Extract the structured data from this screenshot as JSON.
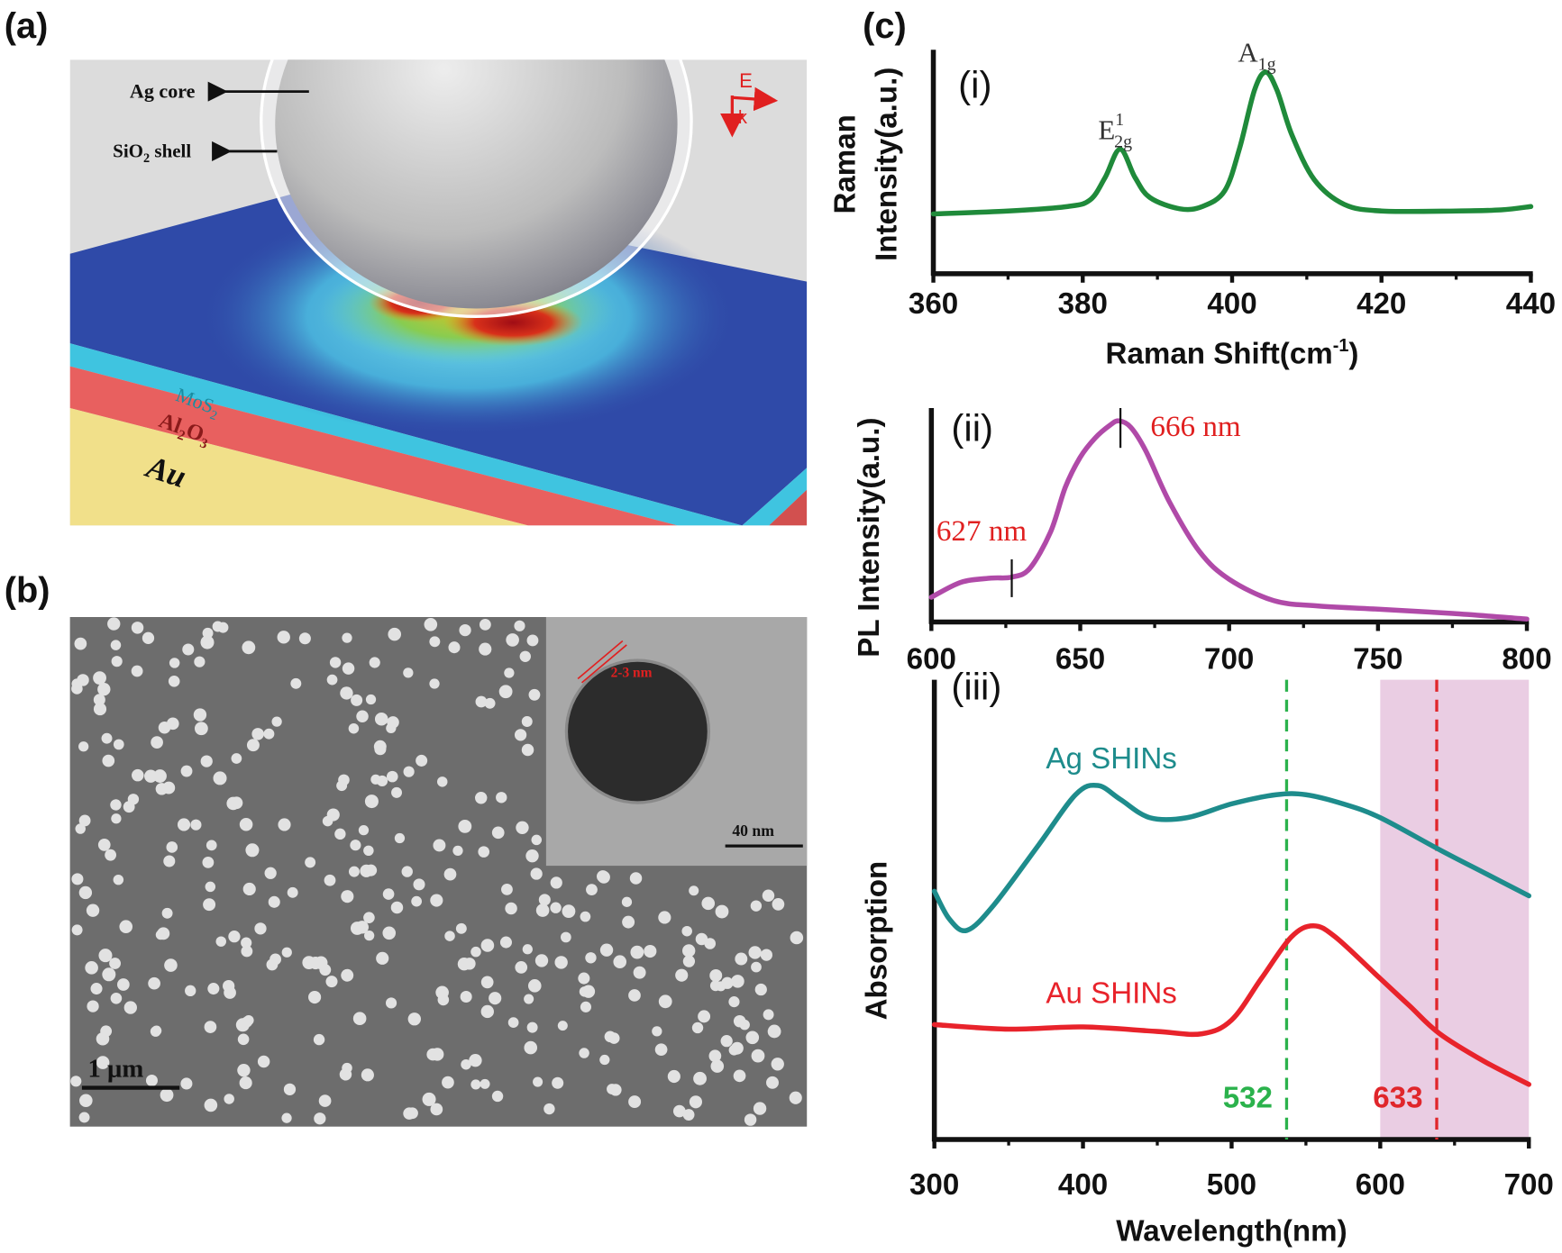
{
  "panels": {
    "a": {
      "label": "(a)",
      "ag_core": "Ag core",
      "sio2_shell": {
        "main": "SiO",
        "sub": "2",
        "rest": " shell"
      },
      "e_field": "E",
      "k_vector": "k",
      "mos2": {
        "main": "MoS",
        "sub": "2"
      },
      "al2o3": {
        "a": "Al",
        "s1": "2",
        "b": "O",
        "s2": "3"
      },
      "au": "Au",
      "colors": {
        "mos2": "#3fc4e0",
        "al2o3": "#e8605f",
        "au": "#f1e08a",
        "field_low": "#2f4aa8",
        "field_high": "#b0101a"
      }
    },
    "b": {
      "label": "(b)",
      "scale_bar": "1 μm",
      "inset_scale_bar": "40 nm",
      "shell_thickness": "2-3 nm"
    },
    "c": {
      "label": "(c)"
    }
  },
  "chart_data": [
    {
      "type": "line",
      "panel": "(i)",
      "xlabel": {
        "main": "Raman Shift(cm",
        "sup": "-1",
        "close": ")"
      },
      "ylabel": [
        "Raman",
        "Intensity(a.u.)"
      ],
      "xlim": [
        360,
        440
      ],
      "ylim": [
        0,
        1
      ],
      "xticks": [
        "360",
        "380",
        "400",
        "420",
        "440"
      ],
      "yticks": [],
      "grid": false,
      "color": "#1f8a3a",
      "annotations": [
        {
          "text": "E",
          "sup": "1",
          "sub": "2g",
          "x": 385
        },
        {
          "text": "A",
          "sub": "1g",
          "x": 404.5
        }
      ],
      "series": [
        {
          "points": [
            [
              360,
              0.267
            ],
            [
              370,
              0.28
            ],
            [
              378,
              0.3
            ],
            [
              381,
              0.33
            ],
            [
              383,
              0.43
            ],
            [
              385,
              0.556
            ],
            [
              387,
              0.43
            ],
            [
              389,
              0.34
            ],
            [
              393,
              0.29
            ],
            [
              396,
              0.3
            ],
            [
              399,
              0.37
            ],
            [
              401,
              0.56
            ],
            [
              403,
              0.82
            ],
            [
              404.5,
              0.9
            ],
            [
              406,
              0.82
            ],
            [
              408,
              0.62
            ],
            [
              411,
              0.42
            ],
            [
              415,
              0.31
            ],
            [
              420,
              0.28
            ],
            [
              430,
              0.28
            ],
            [
              436,
              0.285
            ],
            [
              440,
              0.3
            ]
          ]
        }
      ]
    },
    {
      "type": "line",
      "panel": "(ii)",
      "xlabel": "",
      "ylabel": [
        "PL Intensity(a.u.)"
      ],
      "xlim": [
        600,
        800
      ],
      "ylim": [
        0,
        1
      ],
      "xticks": [
        "600",
        "650",
        "700",
        "750",
        "800"
      ],
      "yticks": [],
      "grid": false,
      "color": "#b04aa8",
      "annotations": [
        {
          "text": "666 nm",
          "x": 666
        },
        {
          "text": "627 nm",
          "x": 627
        }
      ],
      "series": [
        {
          "points": [
            [
              600,
              0.116
            ],
            [
              610,
              0.186
            ],
            [
              620,
              0.205
            ],
            [
              627,
              0.21
            ],
            [
              633,
              0.25
            ],
            [
              640,
              0.42
            ],
            [
              645,
              0.63
            ],
            [
              650,
              0.77
            ],
            [
              655,
              0.86
            ],
            [
              660,
              0.92
            ],
            [
              663,
              0.94
            ],
            [
              667,
              0.91
            ],
            [
              672,
              0.8
            ],
            [
              680,
              0.56
            ],
            [
              690,
              0.33
            ],
            [
              700,
              0.2
            ],
            [
              715,
              0.1
            ],
            [
              730,
              0.075
            ],
            [
              750,
              0.06
            ],
            [
              775,
              0.04
            ],
            [
              800,
              0.014
            ]
          ]
        }
      ]
    },
    {
      "type": "line",
      "panel": "(iii)",
      "xlabel": "Wavelength(nm)",
      "ylabel": [
        "Absorption"
      ],
      "xlim": [
        300,
        700
      ],
      "ylim": [
        0,
        1
      ],
      "xticks": [
        "300",
        "400",
        "500",
        "600",
        "700"
      ],
      "yticks": [],
      "grid": false,
      "shaded_region": {
        "x": [
          600,
          700
        ],
        "color": "#eacde3"
      },
      "vlines": [
        {
          "x": 537,
          "label": "532",
          "color": "#2bb24c",
          "style": "dashed"
        },
        {
          "x": 638,
          "label": "633",
          "color": "#e0262b",
          "style": "dashed"
        }
      ],
      "series": [
        {
          "name": "Ag SHINs",
          "color": "#1e8c8c",
          "points": [
            [
              300,
              0.54
            ],
            [
              310,
              0.48
            ],
            [
              322,
              0.455
            ],
            [
              340,
              0.51
            ],
            [
              370,
              0.64
            ],
            [
              395,
              0.75
            ],
            [
              410,
              0.77
            ],
            [
              425,
              0.74
            ],
            [
              445,
              0.7
            ],
            [
              470,
              0.7
            ],
            [
              500,
              0.73
            ],
            [
              530,
              0.75
            ],
            [
              550,
              0.75
            ],
            [
              575,
              0.73
            ],
            [
              600,
              0.7
            ],
            [
              640,
              0.63
            ],
            [
              670,
              0.58
            ],
            [
              700,
              0.53
            ]
          ]
        },
        {
          "name": "Au SHINs",
          "color": "#e8232b",
          "points": [
            [
              300,
              0.25
            ],
            [
              350,
              0.24
            ],
            [
              400,
              0.245
            ],
            [
              450,
              0.235
            ],
            [
              480,
              0.23
            ],
            [
              500,
              0.26
            ],
            [
              520,
              0.35
            ],
            [
              540,
              0.44
            ],
            [
              555,
              0.465
            ],
            [
              570,
              0.44
            ],
            [
              600,
              0.35
            ],
            [
              620,
              0.29
            ],
            [
              640,
              0.23
            ],
            [
              670,
              0.17
            ],
            [
              700,
              0.12
            ]
          ]
        }
      ]
    }
  ]
}
